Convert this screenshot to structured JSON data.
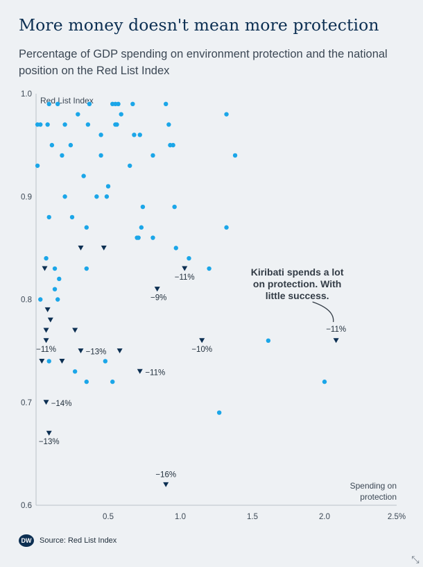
{
  "title": "More money doesn't mean more protection",
  "subtitle": "Percentage of GDP spending on environment protection and the national position on the Red List Index",
  "source": {
    "label": "Source:",
    "name": "Red List Index",
    "logo_text": "DW"
  },
  "resize_icon": "expand-icon",
  "colors": {
    "dot": "#1ba6e8",
    "triangle": "#0c2f52",
    "grid": "#d3d9df"
  },
  "chart_data": {
    "type": "scatter",
    "ylabel": "Red List Index",
    "xlabel": "Spending on protection",
    "xlim": [
      0,
      2.5
    ],
    "ylim": [
      0.6,
      1.0
    ],
    "x_ticks": [
      {
        "value": 0.5,
        "label": "0.5"
      },
      {
        "value": 1.0,
        "label": "1.0"
      },
      {
        "value": 1.5,
        "label": "1.5"
      },
      {
        "value": 2.0,
        "label": "2.0"
      },
      {
        "value": 2.5,
        "label": "2.5%"
      }
    ],
    "y_ticks": [
      {
        "value": 0.6,
        "label": "0.6"
      },
      {
        "value": 0.7,
        "label": "0.7"
      },
      {
        "value": 0.8,
        "label": "0.8"
      },
      {
        "value": 0.9,
        "label": "0.9"
      },
      {
        "value": 1.0,
        "label": "1.0"
      }
    ],
    "grid": false,
    "points": [
      {
        "x": 0.01,
        "y": 0.97
      },
      {
        "x": 0.03,
        "y": 0.97
      },
      {
        "x": 0.09,
        "y": 0.99
      },
      {
        "x": 0.15,
        "y": 0.99
      },
      {
        "x": 0.08,
        "y": 0.97
      },
      {
        "x": 0.01,
        "y": 0.93
      },
      {
        "x": 0.11,
        "y": 0.95
      },
      {
        "x": 0.18,
        "y": 0.94
      },
      {
        "x": 0.24,
        "y": 0.95
      },
      {
        "x": 0.2,
        "y": 0.97
      },
      {
        "x": 0.29,
        "y": 0.98
      },
      {
        "x": 0.36,
        "y": 0.97
      },
      {
        "x": 0.37,
        "y": 0.99
      },
      {
        "x": 0.45,
        "y": 0.96
      },
      {
        "x": 0.53,
        "y": 0.99
      },
      {
        "x": 0.55,
        "y": 0.99
      },
      {
        "x": 0.57,
        "y": 0.99
      },
      {
        "x": 0.55,
        "y": 0.97
      },
      {
        "x": 0.56,
        "y": 0.97
      },
      {
        "x": 0.59,
        "y": 0.98
      },
      {
        "x": 0.45,
        "y": 0.94
      },
      {
        "x": 0.65,
        "y": 0.93
      },
      {
        "x": 0.68,
        "y": 0.96
      },
      {
        "x": 0.72,
        "y": 0.96
      },
      {
        "x": 0.67,
        "y": 0.99
      },
      {
        "x": 0.81,
        "y": 0.94
      },
      {
        "x": 0.9,
        "y": 0.99
      },
      {
        "x": 0.92,
        "y": 0.97
      },
      {
        "x": 0.93,
        "y": 0.95
      },
      {
        "x": 0.95,
        "y": 0.95
      },
      {
        "x": 1.32,
        "y": 0.98
      },
      {
        "x": 1.38,
        "y": 0.94
      },
      {
        "x": 0.33,
        "y": 0.92
      },
      {
        "x": 0.5,
        "y": 0.91
      },
      {
        "x": 0.2,
        "y": 0.9
      },
      {
        "x": 0.42,
        "y": 0.9
      },
      {
        "x": 0.49,
        "y": 0.9
      },
      {
        "x": 0.09,
        "y": 0.88
      },
      {
        "x": 0.25,
        "y": 0.88
      },
      {
        "x": 0.35,
        "y": 0.87
      },
      {
        "x": 0.74,
        "y": 0.89
      },
      {
        "x": 0.96,
        "y": 0.89
      },
      {
        "x": 0.73,
        "y": 0.87
      },
      {
        "x": 0.7,
        "y": 0.86
      },
      {
        "x": 0.71,
        "y": 0.86
      },
      {
        "x": 0.81,
        "y": 0.86
      },
      {
        "x": 1.32,
        "y": 0.87
      },
      {
        "x": 0.97,
        "y": 0.85
      },
      {
        "x": 0.07,
        "y": 0.84
      },
      {
        "x": 0.13,
        "y": 0.83
      },
      {
        "x": 0.35,
        "y": 0.83
      },
      {
        "x": 1.06,
        "y": 0.84
      },
      {
        "x": 1.2,
        "y": 0.83
      },
      {
        "x": 0.16,
        "y": 0.82
      },
      {
        "x": 0.13,
        "y": 0.81
      },
      {
        "x": 0.03,
        "y": 0.8
      },
      {
        "x": 0.15,
        "y": 0.8
      },
      {
        "x": 1.61,
        "y": 0.76
      },
      {
        "x": 0.48,
        "y": 0.74
      },
      {
        "x": 0.09,
        "y": 0.74
      },
      {
        "x": 0.27,
        "y": 0.73
      },
      {
        "x": 0.35,
        "y": 0.72
      },
      {
        "x": 0.53,
        "y": 0.72
      },
      {
        "x": 2.0,
        "y": 0.72
      },
      {
        "x": 1.27,
        "y": 0.69
      }
    ],
    "decline_markers": [
      {
        "x": 0.06,
        "y": 0.83
      },
      {
        "x": 0.31,
        "y": 0.85
      },
      {
        "x": 0.47,
        "y": 0.85
      },
      {
        "x": 0.08,
        "y": 0.79
      },
      {
        "x": 0.1,
        "y": 0.78
      },
      {
        "x": 0.07,
        "y": 0.77
      },
      {
        "x": 0.27,
        "y": 0.77
      },
      {
        "x": 0.07,
        "y": 0.76,
        "label": "−11%",
        "label_dx": 0,
        "label_dy": 16
      },
      {
        "x": 0.04,
        "y": 0.74
      },
      {
        "x": 0.18,
        "y": 0.74
      },
      {
        "x": 0.31,
        "y": 0.75,
        "label": "−13%",
        "label_dx": 22,
        "label_dy": 5
      },
      {
        "x": 0.58,
        "y": 0.75
      },
      {
        "x": 0.72,
        "y": 0.73,
        "label": "−11%",
        "label_dx": 22,
        "label_dy": 5
      },
      {
        "x": 0.84,
        "y": 0.81,
        "label": "−9%",
        "label_dx": 2,
        "label_dy": 16
      },
      {
        "x": 1.03,
        "y": 0.83,
        "label": "−11%",
        "label_dx": 0,
        "label_dy": 16
      },
      {
        "x": 1.15,
        "y": 0.76,
        "label": "−10%",
        "label_dx": 0,
        "label_dy": 16
      },
      {
        "x": 0.07,
        "y": 0.7,
        "label": "−14%",
        "label_dx": 22,
        "label_dy": 5
      },
      {
        "x": 0.09,
        "y": 0.67,
        "label": "−13%",
        "label_dx": 0,
        "label_dy": 16
      },
      {
        "x": 0.9,
        "y": 0.62,
        "label": "−16%",
        "label_dx": 0,
        "label_dy": -11
      },
      {
        "x": 2.08,
        "y": 0.76,
        "label": "−11%",
        "label_dx": 0,
        "label_dy": -13
      }
    ],
    "annotation": {
      "lines": [
        "Kiribati spends a lot",
        "on protection. With",
        "little success."
      ],
      "target_x": 2.08,
      "target_y": 0.76
    }
  }
}
